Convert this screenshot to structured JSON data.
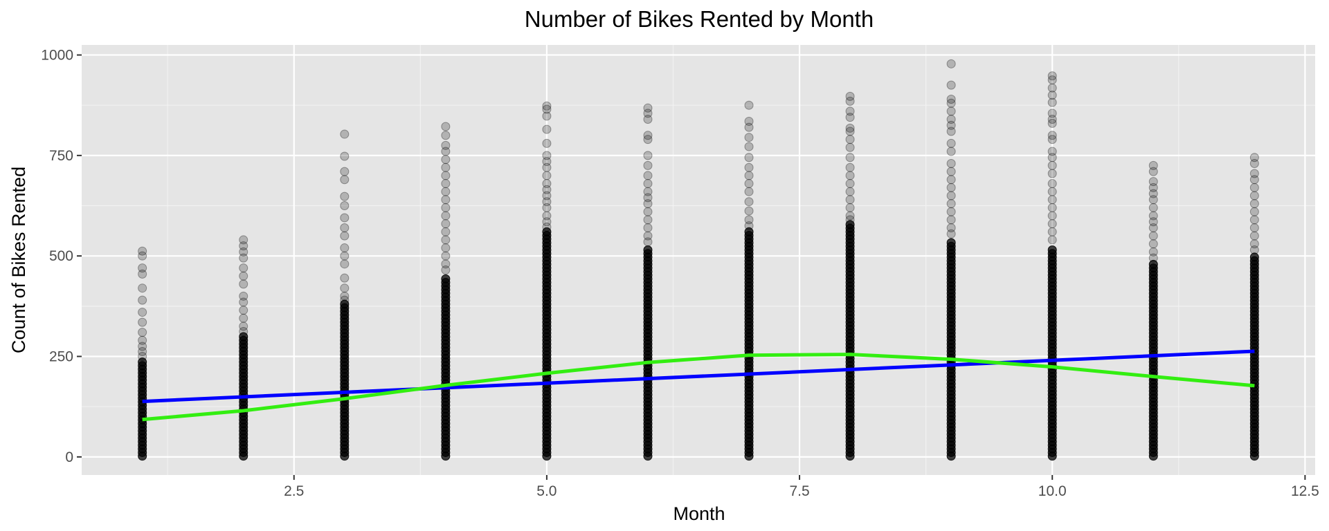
{
  "chart_data": {
    "type": "scatter",
    "title": "Number of Bikes Rented by Month",
    "xlabel": "Month",
    "ylabel": "Count of Bikes Rented",
    "xlim": [
      0.4,
      12.6
    ],
    "ylim": [
      -45,
      1025
    ],
    "x_ticks": [
      {
        "value": 2.5,
        "label": "2.5"
      },
      {
        "value": 5.0,
        "label": "5.0"
      },
      {
        "value": 7.5,
        "label": "7.5"
      },
      {
        "value": 10.0,
        "label": "10.0"
      },
      {
        "value": 12.5,
        "label": "12.5"
      }
    ],
    "y_ticks": [
      {
        "value": 0,
        "label": "0"
      },
      {
        "value": 250,
        "label": "250"
      },
      {
        "value": 500,
        "label": "500"
      },
      {
        "value": 750,
        "label": "750"
      },
      {
        "value": 1000,
        "label": "1000"
      }
    ],
    "grid": true,
    "background_color": "#e5e5e5",
    "point_color": "#000000",
    "month_columns": [
      {
        "month": 1,
        "dense_max": 240,
        "outliers": [
          512,
          500,
          470,
          455,
          420,
          390,
          360,
          335,
          310,
          290,
          275,
          262,
          250
        ]
      },
      {
        "month": 2,
        "dense_max": 300,
        "outliers": [
          540,
          525,
          510,
          495,
          470,
          450,
          430,
          400,
          385,
          365,
          345,
          325,
          312
        ]
      },
      {
        "month": 3,
        "dense_max": 380,
        "outliers": [
          803,
          748,
          710,
          690,
          648,
          625,
          595,
          570,
          550,
          520,
          500,
          480,
          445,
          420,
          400,
          390
        ]
      },
      {
        "month": 4,
        "dense_max": 450,
        "outliers": [
          822,
          800,
          775,
          760,
          740,
          720,
          700,
          680,
          660,
          640,
          620,
          600,
          580,
          560,
          540,
          520,
          500,
          480,
          465
        ]
      },
      {
        "month": 5,
        "dense_max": 560,
        "outliers": [
          873,
          865,
          848,
          815,
          780,
          750,
          735,
          720,
          700,
          680,
          665,
          650,
          635,
          620,
          600,
          585,
          572
        ]
      },
      {
        "month": 6,
        "dense_max": 520,
        "outliers": [
          868,
          855,
          840,
          800,
          790,
          750,
          725,
          700,
          680,
          660,
          645,
          630,
          610,
          590,
          570,
          550,
          535
        ]
      },
      {
        "month": 7,
        "dense_max": 560,
        "outliers": [
          875,
          835,
          820,
          795,
          772,
          745,
          720,
          700,
          680,
          660,
          635,
          612,
          590,
          575
        ]
      },
      {
        "month": 8,
        "dense_max": 580,
        "outliers": [
          897,
          885,
          860,
          845,
          818,
          810,
          790,
          770,
          745,
          720,
          700,
          680,
          660,
          640,
          620,
          600,
          590
        ]
      },
      {
        "month": 9,
        "dense_max": 540,
        "outliers": [
          978,
          925,
          890,
          880,
          860,
          840,
          825,
          810,
          780,
          760,
          730,
          710,
          690,
          670,
          650,
          630,
          610,
          590,
          570,
          555
        ]
      },
      {
        "month": 10,
        "dense_max": 520,
        "outliers": [
          948,
          938,
          918,
          900,
          882,
          855,
          840,
          830,
          800,
          790,
          760,
          745,
          725,
          705,
          680,
          660,
          640,
          620,
          600,
          580,
          560,
          540
        ]
      },
      {
        "month": 11,
        "dense_max": 480,
        "outliers": [
          725,
          710,
          685,
          670,
          655,
          640,
          620,
          600,
          585,
          570,
          550,
          530,
          510,
          495
        ]
      },
      {
        "month": 12,
        "dense_max": 500,
        "outliers": [
          745,
          730,
          705,
          690,
          670,
          650,
          630,
          610,
          590,
          570,
          550,
          530,
          515
        ]
      }
    ],
    "series": [
      {
        "style": "linear fit",
        "color": "#0000ff",
        "x": [
          1,
          12
        ],
        "y": [
          138,
          263
        ]
      },
      {
        "style": "loess smooth",
        "color": "#33ee11",
        "x": [
          1,
          2,
          3,
          4,
          5,
          6,
          7,
          8,
          9,
          10,
          11,
          12
        ],
        "y": [
          93,
          115,
          145,
          178,
          208,
          235,
          253,
          255,
          243,
          224,
          200,
          177
        ]
      }
    ]
  }
}
